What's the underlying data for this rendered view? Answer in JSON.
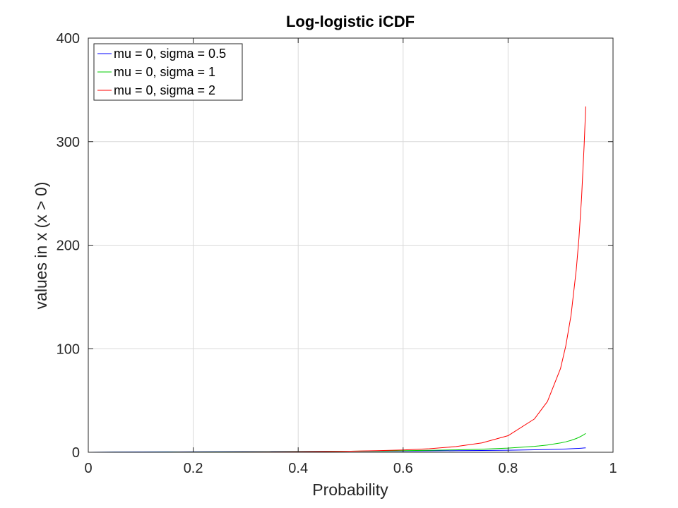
{
  "chart_data": {
    "type": "line",
    "title": "Log-logistic iCDF",
    "xlabel": "Probability",
    "ylabel": "values in x (x > 0)",
    "xlim": [
      0,
      1
    ],
    "ylim": [
      0,
      400
    ],
    "xticks": [
      0,
      0.2,
      0.4,
      0.6,
      0.8,
      1
    ],
    "xtick_labels": [
      "0",
      "0.2",
      "0.4",
      "0.6",
      "0.8",
      "1"
    ],
    "yticks": [
      0,
      100,
      200,
      300,
      400
    ],
    "ytick_labels": [
      "0",
      "100",
      "200",
      "300",
      "400"
    ],
    "grid": true,
    "legend_position": "top-left",
    "x": [
      0,
      0.05,
      0.1,
      0.15,
      0.2,
      0.25,
      0.3,
      0.35,
      0.4,
      0.45,
      0.5,
      0.55,
      0.6,
      0.65,
      0.7,
      0.75,
      0.8,
      0.85,
      0.875,
      0.9,
      0.91,
      0.92,
      0.93,
      0.935,
      0.94,
      0.945,
      0.948
    ],
    "series": [
      {
        "name": "mu = 0, sigma = 0.5",
        "color": "#0000ff",
        "values": [
          0,
          0.23,
          0.33,
          0.42,
          0.5,
          0.58,
          0.65,
          0.73,
          0.82,
          0.9,
          1.0,
          1.11,
          1.22,
          1.36,
          1.53,
          1.73,
          2.0,
          2.38,
          2.65,
          3.0,
          3.18,
          3.39,
          3.65,
          3.79,
          3.96,
          4.15,
          4.27
        ]
      },
      {
        "name": "mu = 0, sigma = 1",
        "color": "#00cc00",
        "values": [
          0,
          0.053,
          0.111,
          0.176,
          0.25,
          0.333,
          0.429,
          0.538,
          0.667,
          0.818,
          1.0,
          1.22,
          1.5,
          1.86,
          2.33,
          3.0,
          4.0,
          5.67,
          7.0,
          9.0,
          10.1,
          11.5,
          13.3,
          14.4,
          15.7,
          17.2,
          18.2
        ]
      },
      {
        "name": "mu = 0, sigma = 2",
        "color": "#ff0000",
        "values": [
          0,
          0.0028,
          0.0123,
          0.031,
          0.0625,
          0.111,
          0.184,
          0.29,
          0.444,
          0.669,
          1.0,
          1.49,
          2.25,
          3.45,
          5.44,
          9.0,
          16.0,
          32.1,
          49.0,
          81.0,
          102.8,
          132.3,
          176.6,
          206.5,
          245.4,
          296.9,
          334.0
        ]
      }
    ]
  }
}
